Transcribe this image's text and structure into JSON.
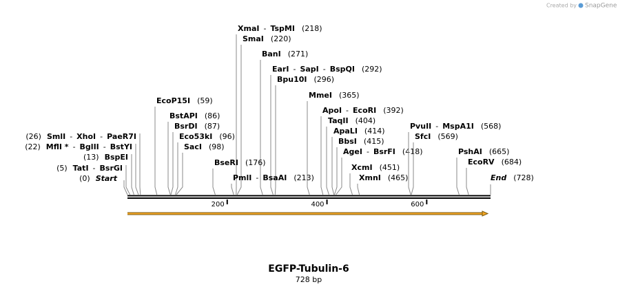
{
  "watermark": {
    "prefix": "Created by",
    "brand": "SnapGene"
  },
  "title": "EGFP-Tubulin-6",
  "subtitle": "728 bp",
  "separator": "-",
  "sequence": {
    "length": 728,
    "ticks": [
      200,
      400,
      600
    ]
  },
  "start": {
    "label": "Start",
    "position": {
      "value": 0,
      "label": "(0)"
    }
  },
  "end": {
    "label": "End",
    "position": {
      "value": 728,
      "label": "(728)"
    }
  },
  "sites": [
    {
      "names": [
        "SmlI",
        "XhoI",
        "PaeR7I"
      ],
      "position": {
        "value": 26,
        "label": "(26)"
      }
    },
    {
      "names": [
        "MflI *",
        "BglII",
        "BstYI"
      ],
      "position": {
        "value": 22,
        "label": "(22)"
      }
    },
    {
      "names": [
        "BspEI"
      ],
      "position": {
        "value": 13,
        "label": "(13)"
      }
    },
    {
      "names": [
        "TatI",
        "BsrGI"
      ],
      "position": {
        "value": 5,
        "label": "(5)"
      }
    },
    {
      "names": [
        "XmaI",
        "TspMI"
      ],
      "position": {
        "value": 218,
        "label": "(218)"
      }
    },
    {
      "names": [
        "SmaI"
      ],
      "position": {
        "value": 220,
        "label": "(220)"
      }
    },
    {
      "names": [
        "BanI"
      ],
      "position": {
        "value": 271,
        "label": "(271)"
      }
    },
    {
      "names": [
        "EarI",
        "SapI",
        "BspQI"
      ],
      "position": {
        "value": 292,
        "label": "(292)"
      }
    },
    {
      "names": [
        "Bpu10I"
      ],
      "position": {
        "value": 296,
        "label": "(296)"
      }
    },
    {
      "names": [
        "MmeI"
      ],
      "position": {
        "value": 365,
        "label": "(365)"
      }
    },
    {
      "names": [
        "EcoP15I"
      ],
      "position": {
        "value": 59,
        "label": "(59)"
      }
    },
    {
      "names": [
        "BstAPI"
      ],
      "position": {
        "value": 86,
        "label": "(86)"
      }
    },
    {
      "names": [
        "BsrDI"
      ],
      "position": {
        "value": 87,
        "label": "(87)"
      }
    },
    {
      "names": [
        "Eco53kI"
      ],
      "position": {
        "value": 96,
        "label": "(96)"
      }
    },
    {
      "names": [
        "SacI"
      ],
      "position": {
        "value": 98,
        "label": "(98)"
      }
    },
    {
      "names": [
        "ApoI",
        "EcoRI"
      ],
      "position": {
        "value": 392,
        "label": "(392)"
      }
    },
    {
      "names": [
        "TaqII"
      ],
      "position": {
        "value": 404,
        "label": "(404)"
      }
    },
    {
      "names": [
        "ApaLI"
      ],
      "position": {
        "value": 414,
        "label": "(414)"
      }
    },
    {
      "names": [
        "BbsI"
      ],
      "position": {
        "value": 415,
        "label": "(415)"
      }
    },
    {
      "names": [
        "AgeI",
        "BsrFI"
      ],
      "position": {
        "value": 418,
        "label": "(418)"
      }
    },
    {
      "names": [
        "XcmI"
      ],
      "position": {
        "value": 451,
        "label": "(451)"
      }
    },
    {
      "names": [
        "XmnI"
      ],
      "position": {
        "value": 465,
        "label": "(465)"
      }
    },
    {
      "names": [
        "BseRI"
      ],
      "position": {
        "value": 176,
        "label": "(176)"
      }
    },
    {
      "names": [
        "PmlI",
        "BsaAI"
      ],
      "position": {
        "value": 213,
        "label": "(213)"
      }
    },
    {
      "names": [
        "PvuII",
        "MspA1I"
      ],
      "position": {
        "value": 568,
        "label": "(568)"
      }
    },
    {
      "names": [
        "SfcI"
      ],
      "position": {
        "value": 569,
        "label": "(569)"
      }
    },
    {
      "names": [
        "PshAI"
      ],
      "position": {
        "value": 665,
        "label": "(665)"
      }
    },
    {
      "names": [
        "EcoRV"
      ],
      "position": {
        "value": 684,
        "label": "(684)"
      }
    }
  ]
}
